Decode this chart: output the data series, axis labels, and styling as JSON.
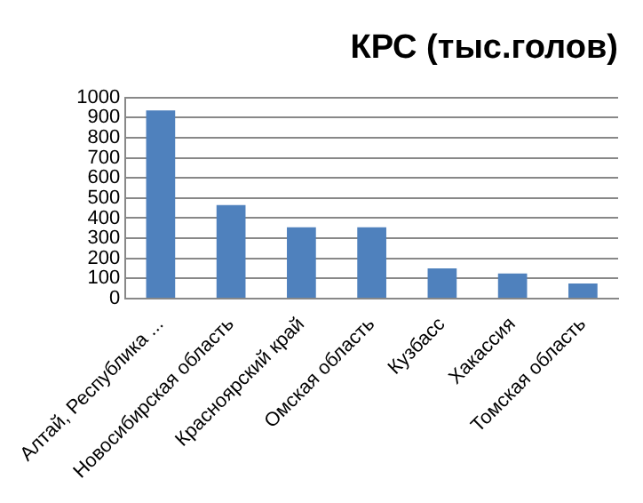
{
  "chart_data": {
    "type": "bar",
    "title": "КРС (тыс.голов)",
    "categories": [
      "Алтай, Республика ...",
      "Новосибирская область",
      "Красноярский край",
      "Омская область",
      "Кузбасс",
      "Хакассия",
      "Томская область"
    ],
    "values": [
      935,
      465,
      355,
      355,
      150,
      125,
      75
    ],
    "color": "#4f81bd",
    "ylim": [
      0,
      1000
    ],
    "yticks": [
      0,
      100,
      200,
      300,
      400,
      500,
      600,
      700,
      800,
      900,
      1000
    ],
    "grid": "y",
    "legend": false
  }
}
